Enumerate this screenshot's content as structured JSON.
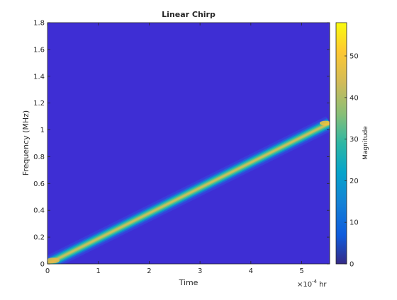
{
  "chart_data": {
    "type": "heatmap",
    "title": "Linear Chirp",
    "xlabel": "Time",
    "ylabel": "Frequency (MHz)",
    "x_unit": "hr",
    "x_exponent_label": "×10",
    "x_exponent": "-4",
    "xlim": [
      0,
      5.55
    ],
    "ylim": [
      0,
      1.8
    ],
    "x_ticks": [
      0,
      1,
      2,
      3,
      4,
      5
    ],
    "y_ticks": [
      0,
      0.2,
      0.4,
      0.6,
      0.8,
      1,
      1.2,
      1.4,
      1.6,
      1.8
    ],
    "x_tick_labels": [
      "0",
      "1",
      "2",
      "3",
      "4",
      "5"
    ],
    "y_tick_labels": [
      "0",
      "0.2",
      "0.4",
      "0.6",
      "0.8",
      "1",
      "1.2",
      "1.4",
      "1.6",
      "1.8"
    ],
    "ridge": {
      "start": [
        0.0,
        0.0
      ],
      "end": [
        5.55,
        1.05
      ]
    },
    "colorbar": {
      "label": "Magnitude",
      "range": [
        0,
        58
      ],
      "ticks": [
        0,
        10,
        20,
        30,
        40,
        50
      ],
      "tick_labels": [
        "0",
        "10",
        "20",
        "30",
        "40",
        "50"
      ],
      "colormap": "parula"
    },
    "grid": false
  }
}
